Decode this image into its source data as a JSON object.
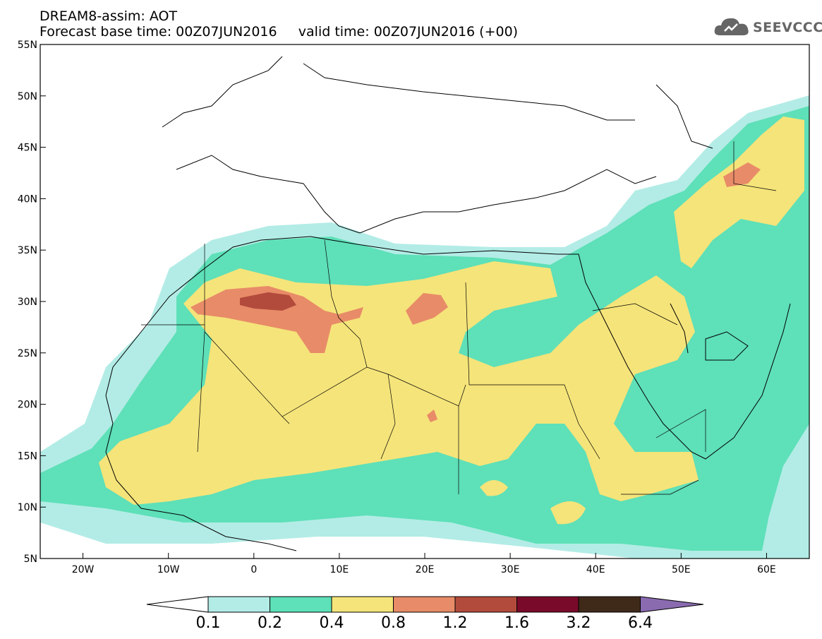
{
  "header": {
    "line1": "DREAM8-assim: AOT",
    "line2": "Forecast base time: 00Z07JUN2016     valid time: 00Z07JUN2016 (+00)"
  },
  "logo": {
    "text": "SEEVCCC",
    "icon": "cloud-icon"
  },
  "map": {
    "lon_range": [
      -25,
      65
    ],
    "lat_range": [
      5,
      55
    ],
    "lat_ticks": [
      "55N",
      "50N",
      "45N",
      "40N",
      "35N",
      "30N",
      "25N",
      "20N",
      "15N",
      "10N",
      "5N"
    ],
    "lon_ticks": [
      "20W",
      "10W",
      "0",
      "10E",
      "20E",
      "30E",
      "40E",
      "50E",
      "60E"
    ]
  },
  "colorbar": {
    "labels": [
      "0.1",
      "0.2",
      "0.4",
      "0.8",
      "1.2",
      "1.6",
      "3.2",
      "6.4"
    ],
    "colors": [
      "#b3ece6",
      "#5ee0b8",
      "#f5e47a",
      "#e88b68",
      "#b34b3c",
      "#7a0a2a",
      "#3f2a1a"
    ],
    "over_color": "#8a6bb0",
    "under_color": "#ffffff"
  }
}
